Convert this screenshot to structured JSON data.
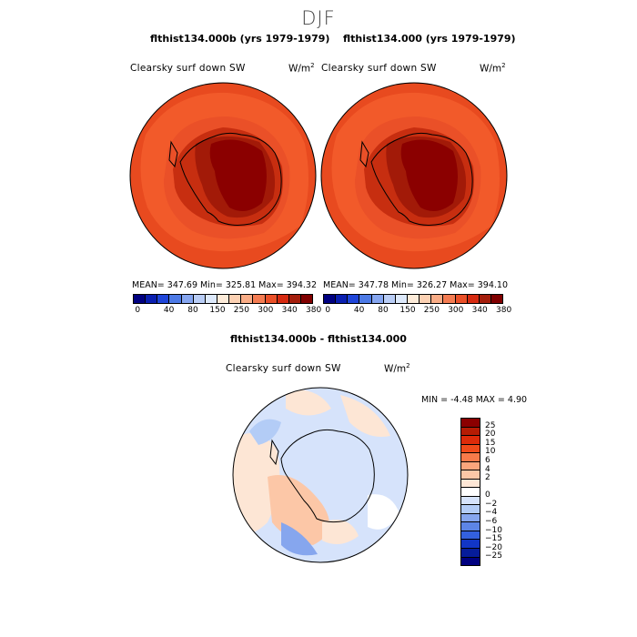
{
  "title": "DJF",
  "panels": [
    {
      "title": "flthist134.000b (yrs 1979-1979)",
      "variable": "Clearsky surf down SW",
      "units_base": "W/m",
      "units_exp": "2",
      "stats": "MEAN= 347.69   Min= 325.81   Max= 394.32"
    },
    {
      "title": "flthist134.000 (yrs 1979-1979)",
      "variable": "Clearsky surf down SW",
      "units_base": "W/m",
      "units_exp": "2",
      "stats": "MEAN= 347.78   Min= 326.27   Max= 394.10"
    }
  ],
  "top_colorbar": {
    "labels": [
      "0",
      "40",
      "80",
      "150",
      "250",
      "300",
      "340",
      "380"
    ],
    "colors": [
      "#000080",
      "#0a1fb0",
      "#1f45d9",
      "#4d7ae6",
      "#86a6f0",
      "#b9cdf6",
      "#dde9fb",
      "#fdebd9",
      "#fcd1b3",
      "#f9ac86",
      "#f47c52",
      "#ea5028",
      "#d62a10",
      "#a41e0c",
      "#800000"
    ]
  },
  "diff_panel": {
    "title": "flthist134.000b - flthist134.000",
    "variable": "Clearsky surf down SW",
    "units_base": "W/m",
    "units_exp": "2",
    "minmax": "MIN =   -4.48  MAX =    4.90",
    "colorbar_labels": [
      "25",
      "20",
      "15",
      "10",
      "6",
      "4",
      "2",
      "0",
      "−2",
      "−4",
      "−6",
      "−10",
      "−15",
      "−20",
      "−25"
    ],
    "colorbar_colors": [
      "#8b0000",
      "#b51c04",
      "#dd2b0a",
      "#f04a1a",
      "#f77a4a",
      "#fba57c",
      "#fcc7a7",
      "#fde6d5",
      "#ffffff",
      "#d6e3fb",
      "#b3ccf6",
      "#86a6ee",
      "#5d85e6",
      "#3360de",
      "#1236c6",
      "#061c9a",
      "#000080"
    ]
  }
}
